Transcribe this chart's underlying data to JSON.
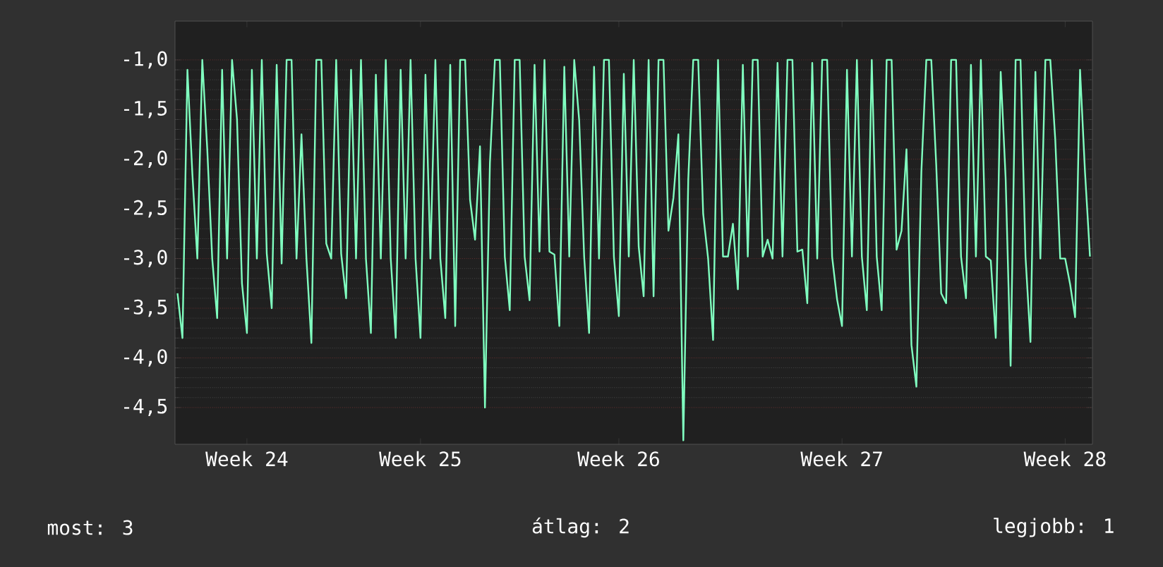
{
  "chart_data": {
    "type": "line",
    "color": "#80ffc0",
    "grid": true,
    "ylim": [
      -4.87,
      -0.61
    ],
    "yticks": [
      {
        "value": -1,
        "label": "-1,0"
      },
      {
        "value": -1.5,
        "label": "-1,5"
      },
      {
        "value": -2,
        "label": "-2,0"
      },
      {
        "value": -2.5,
        "label": "-2,5"
      },
      {
        "value": -3,
        "label": "-3,0"
      },
      {
        "value": -3.5,
        "label": "-3,5"
      },
      {
        "value": -4,
        "label": "-4,0"
      },
      {
        "value": -4.5,
        "label": "-4,5"
      }
    ],
    "annotations": [
      "most: 3",
      "átlag: 2",
      "legjobb: 1"
    ],
    "categories": [
      null,
      null,
      null,
      null,
      null,
      null,
      null,
      null,
      null,
      null,
      null,
      null,
      null,
      null,
      "Week 24",
      null,
      null,
      null,
      null,
      null,
      null,
      null,
      null,
      null,
      null,
      null,
      null,
      null,
      null,
      null,
      null,
      null,
      null,
      null,
      null,
      null,
      null,
      null,
      null,
      null,
      null,
      null,
      null,
      null,
      null,
      null,
      null,
      null,
      null,
      "Week 25",
      null,
      null,
      null,
      null,
      null,
      null,
      null,
      null,
      null,
      null,
      null,
      null,
      null,
      null,
      null,
      null,
      null,
      null,
      null,
      null,
      null,
      null,
      null,
      null,
      null,
      null,
      null,
      null,
      null,
      null,
      null,
      null,
      null,
      null,
      null,
      null,
      null,
      null,
      null,
      "Week 26",
      null,
      null,
      null,
      null,
      null,
      null,
      null,
      null,
      null,
      null,
      null,
      null,
      null,
      null,
      null,
      null,
      null,
      null,
      null,
      null,
      null,
      null,
      null,
      null,
      null,
      null,
      null,
      null,
      null,
      null,
      null,
      null,
      null,
      null,
      null,
      null,
      null,
      null,
      null,
      null,
      null,
      null,
      null,
      null,
      "Week 27",
      null,
      null,
      null,
      null,
      null,
      null,
      null,
      null,
      null,
      null,
      null,
      null,
      null,
      null,
      null,
      null,
      null,
      null,
      null,
      null,
      null,
      null,
      null,
      null,
      null,
      null,
      null,
      null,
      null,
      null,
      null,
      null,
      null,
      null,
      null,
      null,
      null,
      null,
      null,
      null,
      null,
      null,
      null,
      null,
      "Week 28",
      null,
      null,
      null,
      null,
      null
    ],
    "values": [
      -3.35,
      -3.8,
      -1.1,
      -2.15,
      -3.0,
      -1.0,
      -1.9,
      -3.0,
      -3.6,
      -1.1,
      -3.0,
      -1.0,
      -1.6,
      -3.25,
      -3.75,
      -1.1,
      -3.0,
      -1.0,
      -2.95,
      -3.5,
      -1.05,
      -3.05,
      -1.0,
      -1.0,
      -3.0,
      -1.75,
      -3.0,
      -3.85,
      -1.0,
      -1.0,
      -2.85,
      -3.0,
      -1.0,
      -2.95,
      -3.4,
      -1.1,
      -3.0,
      -1.0,
      -3.0,
      -3.75,
      -1.15,
      -3.0,
      -1.0,
      -3.0,
      -3.8,
      -1.1,
      -3.0,
      -1.0,
      -3.0,
      -3.8,
      -1.15,
      -3.0,
      -1.0,
      -3.0,
      -3.6,
      -1.05,
      -3.68,
      -1.0,
      -1.0,
      -2.41,
      -2.81,
      -1.87,
      -4.5,
      -2.04,
      -1.0,
      -1.0,
      -2.98,
      -3.52,
      -1.0,
      -1.0,
      -2.98,
      -3.42,
      -1.05,
      -2.93,
      -1.0,
      -2.93,
      -2.96,
      -3.68,
      -1.07,
      -2.98,
      -1.0,
      -1.61,
      -2.98,
      -3.75,
      -1.07,
      -3.0,
      -1.0,
      -1.0,
      -2.98,
      -3.58,
      -1.14,
      -2.98,
      -1.0,
      -2.88,
      -3.38,
      -1.0,
      -3.38,
      -1.0,
      -1.0,
      -2.72,
      -2.39,
      -1.75,
      -4.83,
      -2.2,
      -1.0,
      -1.0,
      -2.55,
      -3.0,
      -3.82,
      -1.0,
      -2.98,
      -2.98,
      -2.65,
      -3.31,
      -1.05,
      -2.98,
      -1.0,
      -1.0,
      -2.98,
      -2.81,
      -3.0,
      -1.03,
      -2.98,
      -1.0,
      -1.0,
      -2.93,
      -2.91,
      -3.45,
      -1.03,
      -3.0,
      -1.0,
      -1.0,
      -2.98,
      -3.41,
      -3.68,
      -1.1,
      -2.98,
      -1.0,
      -2.98,
      -3.52,
      -1.0,
      -2.98,
      -3.52,
      -1.0,
      -1.0,
      -2.91,
      -2.72,
      -1.9,
      -3.87,
      -4.29,
      -2.13,
      -1.0,
      -1.0,
      -2.06,
      -3.35,
      -3.45,
      -1.0,
      -1.0,
      -2.98,
      -3.4,
      -1.05,
      -2.98,
      -1.0,
      -2.98,
      -3.02,
      -3.8,
      -1.12,
      -2.2,
      -4.08,
      -1.0,
      -1.0,
      -2.98,
      -3.84,
      -1.12,
      -3.0,
      -1.0,
      -1.0,
      -1.8,
      -3.0,
      -3.0,
      -3.26,
      -3.59,
      -1.1,
      -2.13,
      -2.98
    ]
  }
}
